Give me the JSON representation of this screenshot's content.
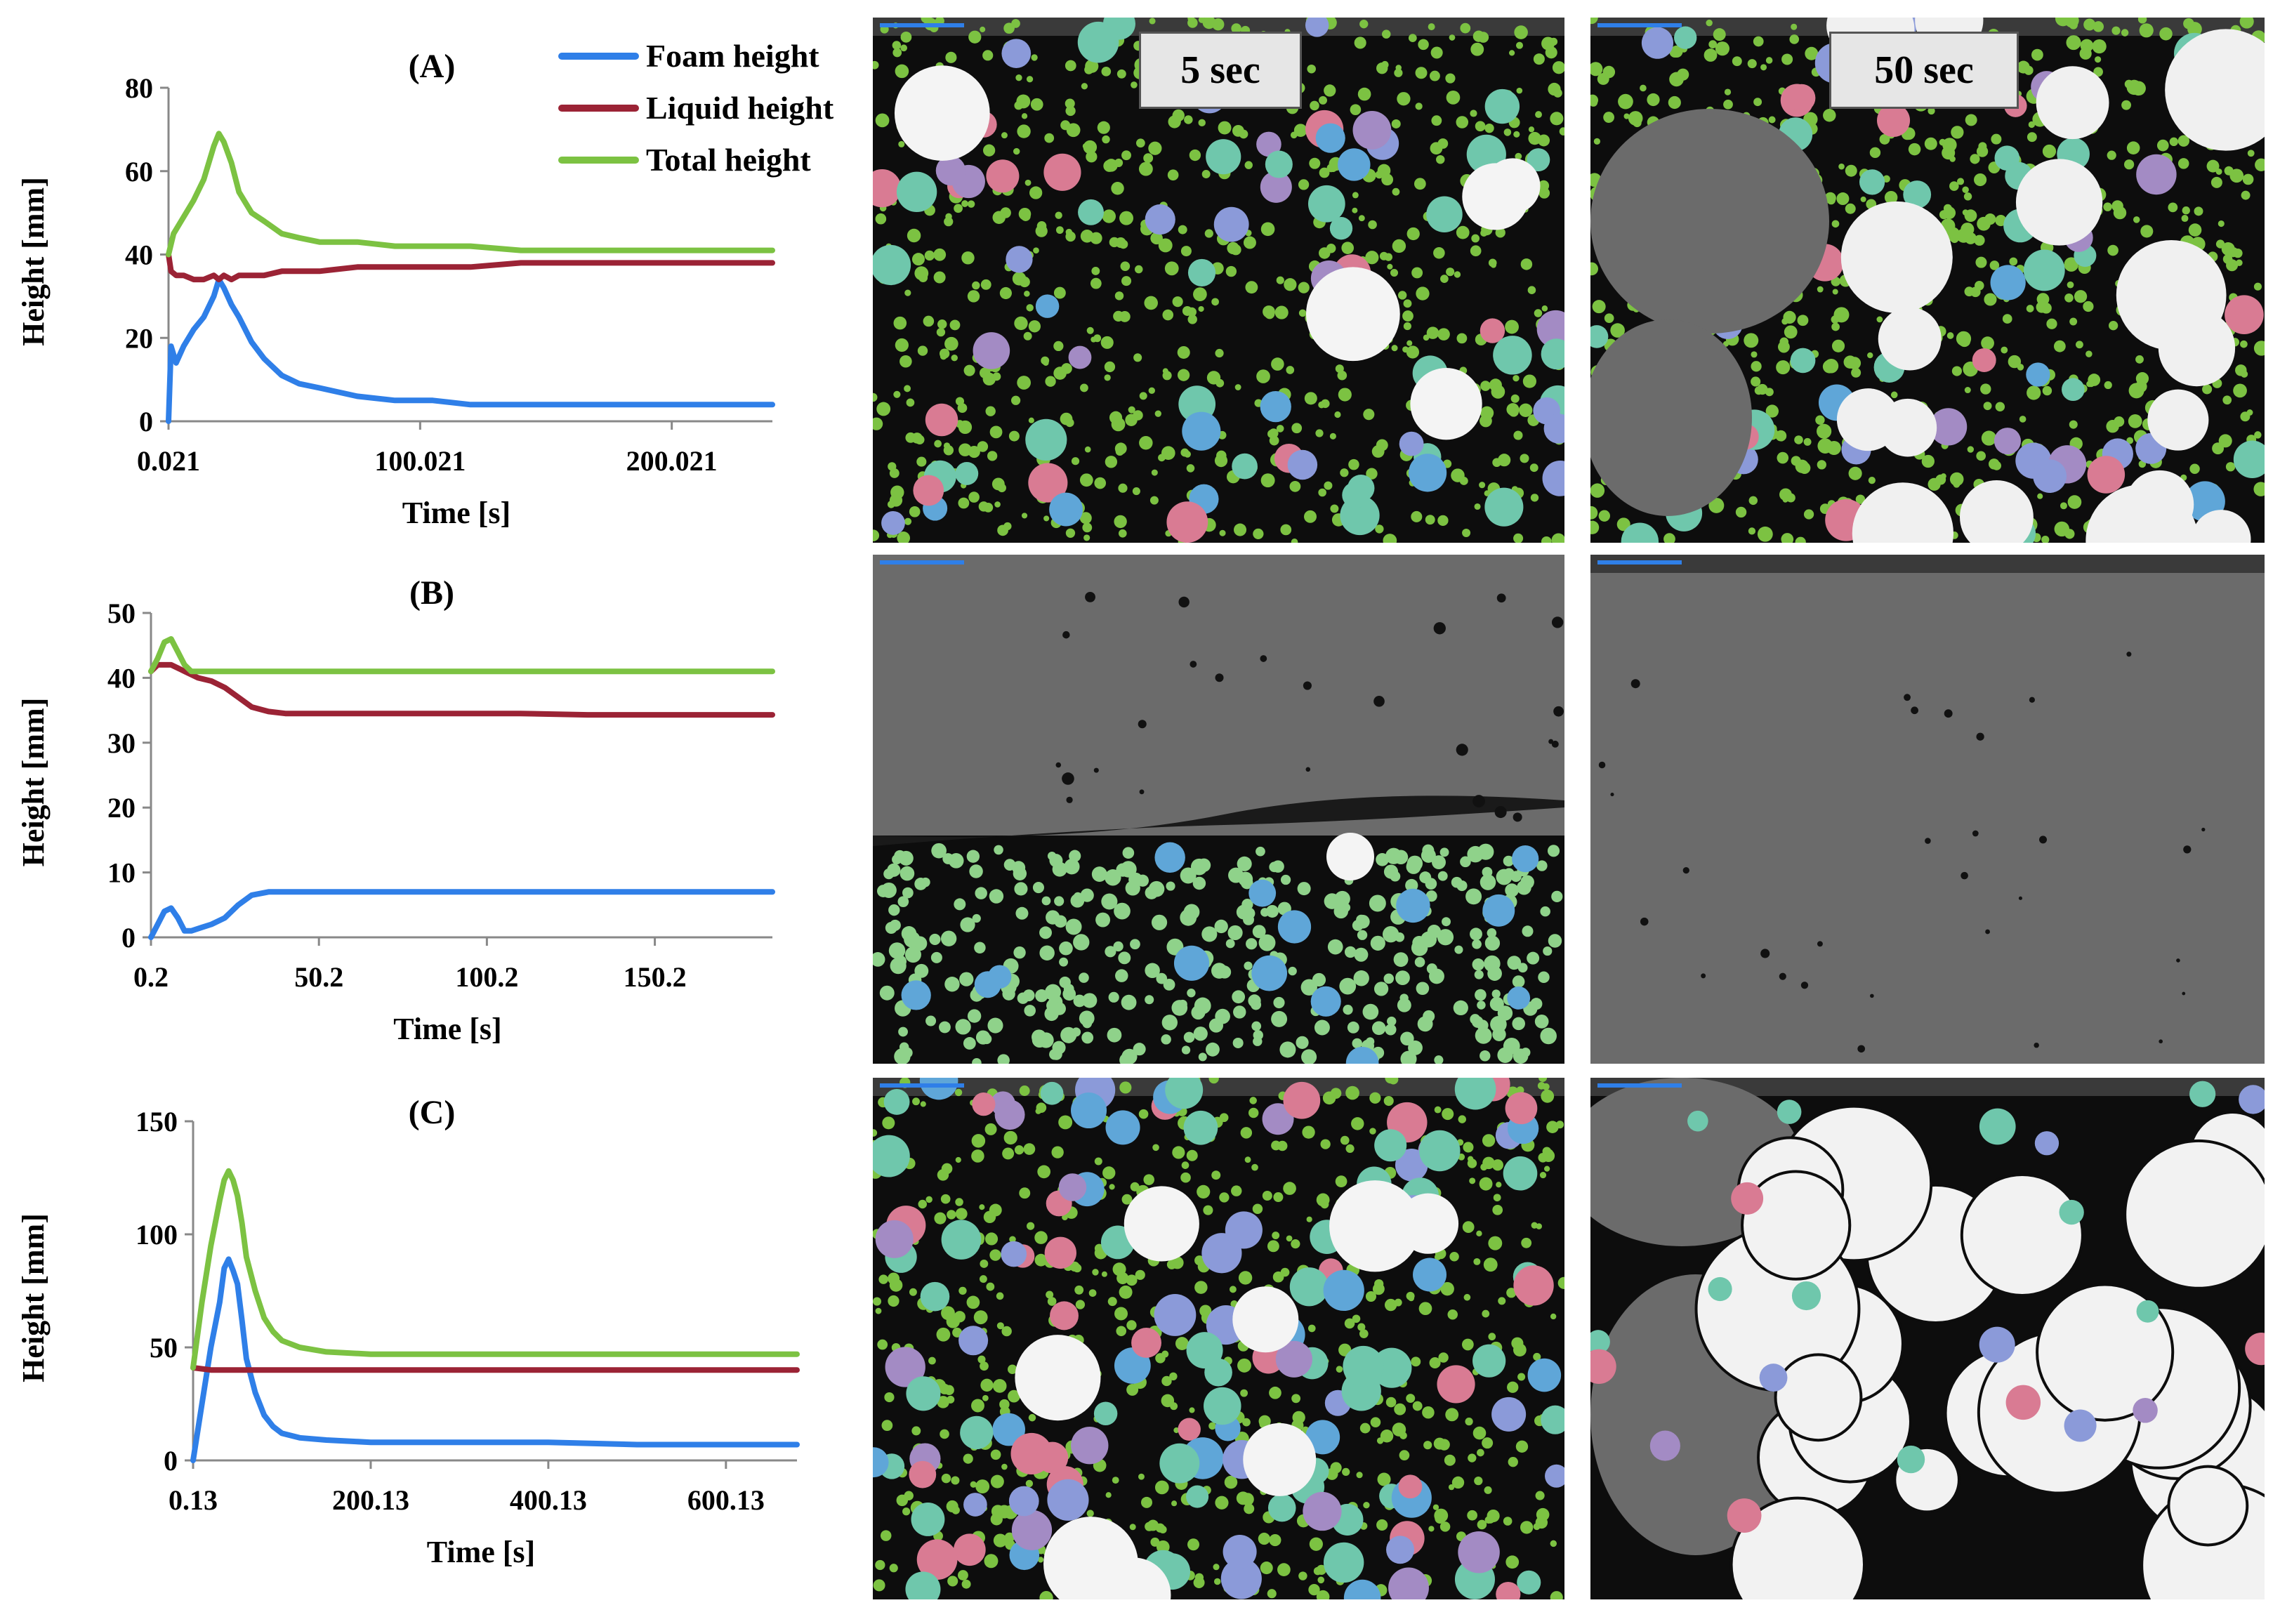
{
  "legend": [
    {
      "name": "Foam height",
      "color": "#2f7fe8"
    },
    {
      "name": "Liquid height",
      "color": "#9b2335"
    },
    {
      "name": "Total height",
      "color": "#7cc242"
    }
  ],
  "time_labels": [
    "5 sec",
    "50 sec"
  ],
  "colors": {
    "foam": "#2f7fe8",
    "liquid": "#9b2335",
    "total": "#7cc242",
    "panel_bg": "#0d0d0d",
    "liquid_gray": "#6b6b6b"
  },
  "chart_data": [
    {
      "type": "line",
      "title": "(A)",
      "xlabel": "Time [s]",
      "ylabel": "Height [mm]",
      "xlim": [
        0,
        240
      ],
      "ylim": [
        0,
        80
      ],
      "xticks": [
        0,
        100,
        200
      ],
      "xtick_labels": [
        "0.021",
        "100.021",
        "200.021"
      ],
      "yticks": [
        0,
        20,
        40,
        60,
        80
      ],
      "series": [
        {
          "name": "Foam height",
          "x": [
            0,
            1,
            3,
            6,
            10,
            14,
            18,
            20,
            22,
            25,
            28,
            33,
            38,
            45,
            52,
            60,
            75,
            90,
            105,
            120,
            140,
            170,
            200,
            240
          ],
          "y": [
            0,
            18,
            14,
            18,
            22,
            25,
            30,
            34,
            32,
            28,
            25,
            19,
            15,
            11,
            9,
            8,
            6,
            5,
            5,
            4,
            4,
            4,
            4,
            4
          ]
        },
        {
          "name": "Liquid height",
          "x": [
            0,
            1,
            3,
            6,
            10,
            14,
            18,
            20,
            22,
            25,
            28,
            33,
            38,
            45,
            52,
            60,
            75,
            90,
            105,
            120,
            140,
            170,
            200,
            240
          ],
          "y": [
            40,
            36,
            35,
            35,
            34,
            34,
            35,
            34,
            35,
            34,
            35,
            35,
            35,
            36,
            36,
            36,
            37,
            37,
            37,
            37,
            38,
            38,
            38,
            38
          ]
        },
        {
          "name": "Total height",
          "x": [
            0,
            2,
            5,
            10,
            14,
            18,
            20,
            22,
            25,
            28,
            33,
            38,
            45,
            52,
            60,
            75,
            90,
            105,
            120,
            140,
            170,
            200,
            240
          ],
          "y": [
            40,
            45,
            48,
            53,
            58,
            66,
            69,
            67,
            62,
            55,
            50,
            48,
            45,
            44,
            43,
            43,
            42,
            42,
            42,
            41,
            41,
            41,
            41
          ]
        }
      ]
    },
    {
      "type": "line",
      "title": "(B)",
      "xlabel": "Time [s]",
      "ylabel": "Height [mm]",
      "xlim": [
        0,
        185
      ],
      "ylim": [
        0,
        50
      ],
      "xticks": [
        0,
        50,
        100,
        150
      ],
      "xtick_labels": [
        "0.2",
        "50.2",
        "100.2",
        "150.2"
      ],
      "yticks": [
        0,
        10,
        20,
        30,
        40,
        50
      ],
      "series": [
        {
          "name": "Foam height",
          "x": [
            0,
            2,
            4,
            6,
            8,
            10,
            12,
            15,
            18,
            22,
            26,
            30,
            35,
            40,
            50,
            70,
            90,
            110,
            130,
            150,
            185
          ],
          "y": [
            0,
            2,
            4,
            4.5,
            3,
            1,
            1,
            1.5,
            2,
            3,
            5,
            6.5,
            7,
            7,
            7,
            7,
            7,
            7,
            7,
            7,
            7
          ]
        },
        {
          "name": "Liquid height",
          "x": [
            0,
            2,
            4,
            6,
            8,
            10,
            14,
            18,
            22,
            26,
            30,
            35,
            40,
            50,
            70,
            90,
            110,
            130,
            150,
            185
          ],
          "y": [
            41,
            42,
            42,
            42,
            41.5,
            41,
            40,
            39.5,
            38.5,
            37,
            35.5,
            34.8,
            34.5,
            34.5,
            34.5,
            34.5,
            34.5,
            34.3,
            34.3,
            34.3
          ]
        },
        {
          "name": "Total height",
          "x": [
            0,
            2,
            4,
            6,
            8,
            10,
            12,
            15,
            20,
            40,
            80,
            120,
            185
          ],
          "y": [
            41,
            43,
            45.5,
            46,
            44,
            42,
            41,
            41,
            41,
            41,
            41,
            41,
            41
          ]
        }
      ]
    },
    {
      "type": "line",
      "title": "(C)",
      "xlabel": "Time [s]",
      "ylabel": "Height [mm]",
      "xlim": [
        0,
        680
      ],
      "ylim": [
        0,
        150
      ],
      "xticks": [
        0,
        200,
        400,
        600
      ],
      "xtick_labels": [
        "0.13",
        "200.13",
        "400.13",
        "600.13"
      ],
      "yticks": [
        0,
        50,
        100,
        150
      ],
      "series": [
        {
          "name": "Foam height",
          "x": [
            0,
            10,
            20,
            30,
            35,
            40,
            45,
            50,
            55,
            60,
            70,
            80,
            90,
            100,
            120,
            150,
            200,
            300,
            400,
            500,
            680
          ],
          "y": [
            0,
            25,
            50,
            70,
            85,
            89,
            84,
            78,
            62,
            45,
            30,
            20,
            15,
            12,
            10,
            9,
            8,
            8,
            8,
            7,
            7
          ]
        },
        {
          "name": "Liquid height",
          "x": [
            0,
            20,
            40,
            60,
            100,
            200,
            300,
            400,
            500,
            680
          ],
          "y": [
            41,
            40,
            40,
            40,
            40,
            40,
            40,
            40,
            40,
            40
          ]
        },
        {
          "name": "Total height",
          "x": [
            0,
            10,
            20,
            30,
            35,
            40,
            45,
            50,
            55,
            60,
            70,
            80,
            90,
            100,
            120,
            150,
            200,
            300,
            400,
            500,
            680
          ],
          "y": [
            41,
            70,
            95,
            115,
            124,
            128,
            124,
            117,
            105,
            90,
            75,
            63,
            57,
            53,
            50,
            48,
            47,
            47,
            47,
            47,
            47
          ]
        }
      ]
    }
  ]
}
